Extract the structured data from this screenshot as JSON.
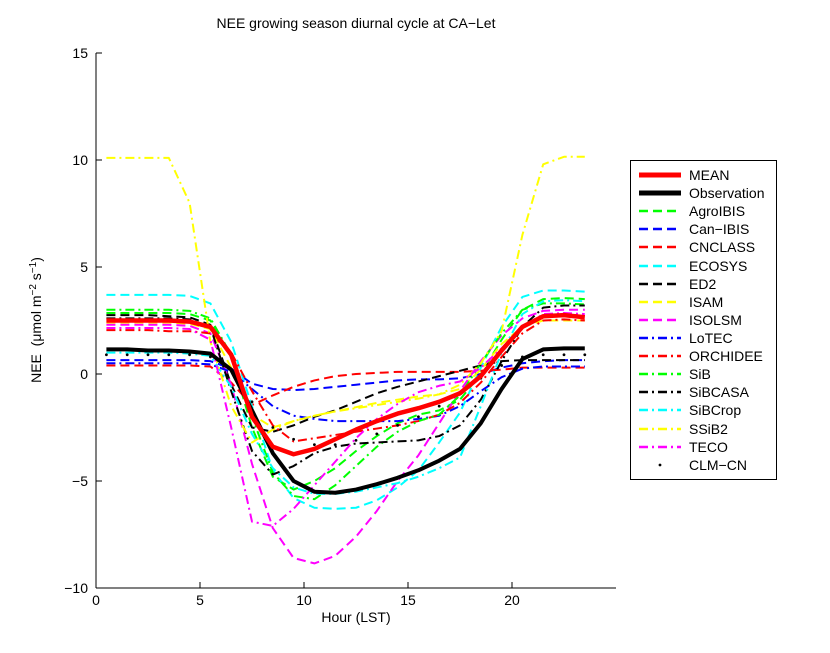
{
  "title": "NEE growing season diurnal cycle at CA−Let",
  "x_axis": {
    "label": "Hour (LST)",
    "ticks": [
      0,
      5,
      10,
      15,
      20
    ],
    "range": [
      0,
      25
    ]
  },
  "y_axis": {
    "label_pre": "NEE  (μmol m",
    "label_sup1": "−2",
    "label_mid": " s",
    "label_sup2": "−1",
    "label_post": ")",
    "ticks": [
      -10,
      -5,
      0,
      5,
      10,
      15
    ],
    "range": [
      -10,
      15
    ]
  },
  "chart_data": {
    "type": "line",
    "title": "NEE growing season diurnal cycle at CA−Let",
    "xlabel": "Hour (LST)",
    "ylabel": "NEE (umol m-2 s-1)",
    "xlim": [
      0,
      25
    ],
    "ylim": [
      -10,
      15
    ],
    "grid": false,
    "legend_position": "right-outside",
    "x_hours": [
      0.5,
      1.5,
      2.5,
      3.5,
      4.5,
      5.5,
      6.5,
      7.5,
      8.5,
      9.5,
      10.5,
      11.5,
      12.5,
      13.5,
      14.5,
      15.5,
      16.5,
      17.5,
      18.5,
      19.5,
      20.5,
      21.5,
      22.5,
      23.5
    ],
    "series": [
      {
        "name": "MEAN",
        "color": "#ff0000",
        "style": "solid",
        "width": 4.5,
        "values": [
          2.5,
          2.5,
          2.5,
          2.5,
          2.45,
          2.2,
          0.9,
          -2.0,
          -3.4,
          -3.75,
          -3.5,
          -3.05,
          -2.6,
          -2.2,
          -1.85,
          -1.6,
          -1.3,
          -0.9,
          -0.1,
          1.1,
          2.2,
          2.7,
          2.75,
          2.65
        ]
      },
      {
        "name": "Observation",
        "color": "#000000",
        "style": "solid",
        "width": 4,
        "values": [
          1.15,
          1.15,
          1.1,
          1.1,
          1.05,
          0.95,
          0.2,
          -1.7,
          -3.7,
          -5.0,
          -5.5,
          -5.55,
          -5.4,
          -5.15,
          -4.85,
          -4.5,
          -4.05,
          -3.5,
          -2.3,
          -0.7,
          0.7,
          1.15,
          1.2,
          1.2
        ]
      },
      {
        "name": "AgroIBIS",
        "color": "#00ff00",
        "style": "dashed",
        "width": 2,
        "values": [
          2.85,
          2.85,
          2.85,
          2.85,
          2.8,
          2.5,
          0.8,
          -2.5,
          -4.8,
          -5.4,
          -5.0,
          -4.4,
          -3.6,
          -2.9,
          -2.3,
          -1.9,
          -1.7,
          -1.2,
          0.0,
          1.6,
          3.0,
          3.5,
          3.55,
          3.5
        ]
      },
      {
        "name": "Can−IBIS",
        "color": "#0000ff",
        "style": "dashed",
        "width": 2,
        "values": [
          0.65,
          0.65,
          0.65,
          0.65,
          0.65,
          0.6,
          0.25,
          -0.45,
          -0.7,
          -0.75,
          -0.7,
          -0.6,
          -0.5,
          -0.4,
          -0.3,
          -0.25,
          -0.25,
          -0.2,
          0.0,
          0.3,
          0.5,
          0.6,
          0.65,
          0.65
        ]
      },
      {
        "name": "CNCLASS",
        "color": "#ff0000",
        "style": "dashed",
        "width": 2,
        "values": [
          0.4,
          0.4,
          0.4,
          0.4,
          0.4,
          0.35,
          -0.4,
          -1.45,
          -1.0,
          -0.6,
          -0.3,
          -0.1,
          0.0,
          0.05,
          0.1,
          0.1,
          0.1,
          0.1,
          0.15,
          0.2,
          0.3,
          0.3,
          0.3,
          0.3
        ]
      },
      {
        "name": "ECOSYS",
        "color": "#00ffff",
        "style": "dashed",
        "width": 2,
        "values": [
          3.7,
          3.7,
          3.7,
          3.7,
          3.65,
          3.3,
          1.5,
          -1.5,
          -4.5,
          -5.8,
          -6.25,
          -6.3,
          -6.25,
          -5.9,
          -5.3,
          -4.5,
          -3.2,
          -1.8,
          0.3,
          2.2,
          3.6,
          3.9,
          3.9,
          3.85
        ]
      },
      {
        "name": "ED2",
        "color": "#000000",
        "style": "dashed",
        "width": 2,
        "values": [
          2.75,
          2.75,
          2.75,
          2.7,
          2.65,
          2.3,
          -0.5,
          -2.5,
          -2.7,
          -2.4,
          -2.0,
          -1.7,
          -1.3,
          -0.9,
          -0.6,
          -0.35,
          -0.1,
          0.15,
          0.4,
          0.6,
          0.65,
          0.65,
          0.65,
          0.65
        ]
      },
      {
        "name": "ISAM",
        "color": "#ffff00",
        "style": "dashed",
        "width": 2,
        "values": [
          2.4,
          2.4,
          2.4,
          2.4,
          2.35,
          2.1,
          0.3,
          -1.9,
          -2.5,
          -2.2,
          -1.95,
          -1.75,
          -1.55,
          -1.35,
          -1.2,
          -1.05,
          -0.95,
          -0.7,
          0.2,
          1.4,
          2.2,
          2.5,
          2.5,
          2.5
        ]
      },
      {
        "name": "ISOLSM",
        "color": "#ff00ff",
        "style": "dashed",
        "width": 2,
        "values": [
          2.3,
          2.3,
          2.3,
          2.3,
          2.25,
          1.9,
          -0.5,
          -4.2,
          -7.2,
          -8.6,
          -8.85,
          -8.5,
          -7.6,
          -6.4,
          -5.0,
          -3.8,
          -2.3,
          -0.8,
          0.6,
          1.8,
          2.6,
          2.95,
          3.0,
          3.0
        ]
      },
      {
        "name": "LoTEC",
        "color": "#0000ff",
        "style": "dashdot",
        "width": 2,
        "values": [
          0.5,
          0.5,
          0.5,
          0.5,
          0.5,
          0.45,
          0.1,
          -0.7,
          -1.5,
          -1.95,
          -2.1,
          -2.2,
          -2.2,
          -2.2,
          -2.2,
          -2.1,
          -1.95,
          -1.5,
          -0.8,
          -0.15,
          0.25,
          0.35,
          0.35,
          0.35
        ]
      },
      {
        "name": "ORCHIDEE",
        "color": "#ff0000",
        "style": "dashdot",
        "width": 2,
        "values": [
          2.05,
          2.05,
          2.05,
          2.0,
          2.0,
          1.9,
          1.0,
          -0.8,
          -2.4,
          -3.15,
          -3.0,
          -2.85,
          -2.7,
          -2.55,
          -2.4,
          -2.2,
          -1.9,
          -1.35,
          -0.4,
          0.8,
          1.9,
          2.5,
          2.55,
          2.5
        ]
      },
      {
        "name": "SiB",
        "color": "#00ff00",
        "style": "dashdot",
        "width": 2,
        "values": [
          3.0,
          3.0,
          3.0,
          3.0,
          2.95,
          2.6,
          0.9,
          -2.0,
          -4.6,
          -5.7,
          -5.85,
          -5.2,
          -4.3,
          -3.4,
          -2.7,
          -2.2,
          -1.9,
          -1.0,
          0.5,
          1.9,
          3.0,
          3.3,
          3.3,
          3.25
        ]
      },
      {
        "name": "SiBCASA",
        "color": "#000000",
        "style": "dashdot",
        "width": 2,
        "values": [
          2.6,
          2.6,
          2.6,
          2.6,
          2.55,
          2.2,
          -0.8,
          -3.6,
          -4.7,
          -4.3,
          -3.7,
          -3.4,
          -3.25,
          -3.2,
          -3.15,
          -3.1,
          -2.9,
          -2.4,
          -1.2,
          0.6,
          2.2,
          3.1,
          3.2,
          3.2
        ]
      },
      {
        "name": "SiBCrop",
        "color": "#00ffff",
        "style": "dashdot",
        "width": 2,
        "values": [
          1.0,
          1.0,
          1.0,
          1.0,
          0.95,
          0.85,
          -0.6,
          -2.8,
          -4.4,
          -5.3,
          -5.6,
          -5.6,
          -5.5,
          -5.3,
          -5.1,
          -4.8,
          -4.4,
          -3.9,
          -1.5,
          1.0,
          2.8,
          3.4,
          3.45,
          3.4
        ]
      },
      {
        "name": "SSiB2",
        "color": "#ffff00",
        "style": "dashdot",
        "width": 2,
        "values": [
          10.1,
          10.1,
          10.1,
          10.1,
          8.0,
          1.5,
          -1.5,
          -3.2,
          -2.6,
          -2.2,
          -1.95,
          -1.75,
          -1.6,
          -1.45,
          -1.3,
          -1.15,
          -0.95,
          -0.5,
          0.5,
          2.0,
          6.5,
          9.8,
          10.15,
          10.15
        ]
      },
      {
        "name": "TECO",
        "color": "#ff00ff",
        "style": "dashdot",
        "width": 2,
        "values": [
          2.15,
          2.15,
          2.15,
          2.15,
          2.1,
          1.6,
          -2.5,
          -6.9,
          -7.1,
          -6.3,
          -5.2,
          -4.1,
          -3.0,
          -2.1,
          -1.4,
          -0.85,
          -0.55,
          -0.35,
          0.3,
          1.2,
          2.2,
          2.8,
          2.85,
          2.8
        ]
      },
      {
        "name": "CLM−CN",
        "color": "#000000",
        "style": "dot",
        "width": 1.4,
        "values": [
          0.9,
          0.9,
          0.9,
          0.9,
          0.9,
          0.8,
          0.2,
          -1.3,
          -2.5,
          -3.05,
          -3.3,
          -3.3,
          -3.1,
          -2.8,
          -2.4,
          -2.0,
          -1.5,
          -0.9,
          -0.2,
          0.4,
          0.8,
          0.9,
          0.9,
          0.9
        ]
      }
    ]
  }
}
